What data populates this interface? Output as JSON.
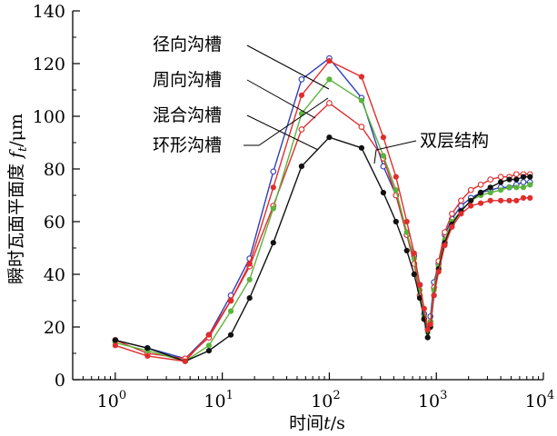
{
  "chart_data": {
    "type": "line",
    "x_scale": "log",
    "xlim": [
      0.4,
      10000
    ],
    "ylim": [
      0,
      140
    ],
    "y_ticks": [
      0,
      20,
      40,
      60,
      80,
      100,
      120,
      140
    ],
    "x_major_ticks": [
      1,
      10,
      100,
      1000,
      10000
    ],
    "x_tick_labels": [
      {
        "base": "10",
        "exp": "0"
      },
      {
        "base": "10",
        "exp": "1"
      },
      {
        "base": "10",
        "exp": "2"
      },
      {
        "base": "10",
        "exp": "3"
      },
      {
        "base": "10",
        "exp": "4"
      }
    ],
    "xlabel": {
      "main": "时间",
      "var": "t",
      "unit": "/s"
    },
    "ylabel": {
      "main": "瞬时瓦面平面度 ",
      "var": "f",
      "sub": "t",
      "unit": "/μm"
    },
    "grid": false,
    "series": [
      {
        "name": "径向沟槽",
        "color": "#2f3fb8",
        "marker": "open",
        "x": [
          1,
          2,
          4.5,
          7.5,
          12,
          18,
          30,
          55,
          100,
          200,
          320,
          420,
          530,
          620,
          700,
          770,
          830,
          880,
          950,
          1050,
          1200,
          1400,
          1700,
          2100,
          2600,
          3200,
          4000,
          4800,
          5600,
          6500,
          7500
        ],
        "y": [
          15,
          12,
          8,
          17,
          32,
          46,
          79,
          114,
          122,
          107,
          81,
          70,
          55,
          47,
          36,
          25,
          20,
          24,
          37,
          44,
          55,
          61,
          66,
          69,
          71,
          72,
          73,
          73,
          74,
          75,
          75
        ]
      },
      {
        "name": "周向沟槽",
        "color": "#e02d2d",
        "marker": "open",
        "x": [
          1,
          2,
          4.5,
          7.5,
          12,
          18,
          30,
          55,
          100,
          200,
          320,
          420,
          530,
          620,
          700,
          770,
          830,
          880,
          950,
          1050,
          1200,
          1400,
          1700,
          2100,
          2600,
          3200,
          4000,
          4800,
          5600,
          6500,
          7500
        ],
        "y": [
          15,
          10,
          8,
          16,
          30,
          43,
          66,
          95,
          105,
          96,
          84,
          70,
          55,
          44,
          32,
          23,
          19,
          22,
          35,
          45,
          56,
          63,
          68,
          72,
          74,
          76,
          77,
          77,
          78,
          78,
          78
        ]
      },
      {
        "name": "混合沟槽",
        "color": "#5cb33c",
        "marker": "filled",
        "x": [
          1,
          2,
          4.5,
          7.5,
          12,
          18,
          30,
          55,
          100,
          200,
          320,
          420,
          530,
          620,
          700,
          770,
          830,
          880,
          950,
          1050,
          1200,
          1400,
          1700,
          2100,
          2600,
          3200,
          4000,
          4800,
          5600,
          6500,
          7500
        ],
        "y": [
          14,
          11,
          7,
          13,
          26,
          38,
          65,
          101,
          114,
          106,
          85,
          72,
          56,
          46,
          34,
          24,
          18,
          22,
          34,
          43,
          53,
          60,
          64,
          68,
          70,
          71,
          72,
          73,
          73,
          73,
          74
        ]
      },
      {
        "name": "双层结构",
        "color": "#111111",
        "marker": "filled",
        "x": [
          1,
          2,
          4.5,
          7.5,
          12,
          18,
          30,
          55,
          100,
          200,
          320,
          420,
          530,
          620,
          700,
          770,
          830,
          880,
          950,
          1050,
          1200,
          1400,
          1700,
          2100,
          2600,
          3200,
          4000,
          4800,
          5600,
          6500,
          7500
        ],
        "y": [
          15,
          12,
          7,
          11,
          17,
          31,
          52,
          81,
          92,
          88,
          71,
          60,
          49,
          40,
          31,
          23,
          16,
          20,
          32,
          42,
          52,
          59,
          64,
          68,
          71,
          73,
          75,
          76,
          76,
          77,
          77
        ]
      },
      {
        "name": "",
        "color": "#e02d2d",
        "marker": "filled",
        "x": [
          1,
          2,
          4.5,
          7.5,
          12,
          18,
          30,
          55,
          100,
          200,
          320,
          420,
          530,
          620,
          700,
          770,
          830,
          880,
          950,
          1050,
          1200,
          1400,
          1700,
          2100,
          2600,
          3200,
          4000,
          4800,
          5600,
          6500,
          7500
        ],
        "y": [
          13,
          9,
          7,
          17,
          30,
          44,
          73,
          108,
          121,
          115,
          92,
          77,
          60,
          48,
          36,
          27,
          19,
          21,
          32,
          41,
          51,
          58,
          63,
          66,
          67,
          68,
          68,
          68,
          68,
          69,
          69
        ]
      }
    ],
    "callouts": [
      "径向沟槽",
      "周向沟槽",
      "混合沟槽",
      "环形沟槽",
      "双层结构"
    ]
  }
}
